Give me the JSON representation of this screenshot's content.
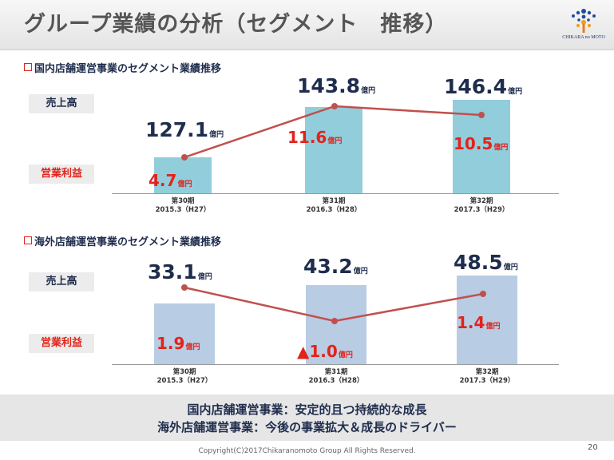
{
  "header": {
    "title": "グループ業績の分析（セグメント　推移）",
    "logo_text": "CHIKARA no MOTO"
  },
  "labels": {
    "sales": "売上高",
    "profit": "営業利益"
  },
  "unit": "億円",
  "periods": [
    {
      "term": "第30期",
      "year": "2015.3（H27）"
    },
    {
      "term": "第31期",
      "year": "2016.3（H28）"
    },
    {
      "term": "第32期",
      "year": "2017.3（H29）"
    }
  ],
  "domestic": {
    "title": "国内店舗運営事業のセグメント業績推移",
    "sales": [
      "127.1",
      "143.8",
      "146.4"
    ],
    "profit": [
      "4.7",
      "11.6",
      "10.5"
    ]
  },
  "overseas": {
    "title": "海外店舗運営事業のセグメント業績推移",
    "sales": [
      "33.1",
      "43.2",
      "48.5"
    ],
    "profit": [
      "1.9",
      "▲1.0",
      "1.4"
    ]
  },
  "chart_data": [
    {
      "type": "bar",
      "title": "国内店舗運営事業のセグメント業績推移",
      "categories": [
        "第30期 2015.3（H27）",
        "第31期 2016.3（H28）",
        "第32期 2017.3（H29）"
      ],
      "series": [
        {
          "name": "売上高",
          "values": [
            127.1,
            143.8,
            146.4
          ],
          "color": "#92cddc"
        },
        {
          "name": "営業利益",
          "values": [
            4.7,
            11.6,
            10.5
          ],
          "color": "#c0504d"
        }
      ]
    },
    {
      "type": "bar",
      "title": "海外店舗運営事業のセグメント業績推移",
      "categories": [
        "第30期 2015.3（H27）",
        "第31期 2016.3（H28）",
        "第32期 2017.3（H29）"
      ],
      "series": [
        {
          "name": "売上高",
          "values": [
            33.1,
            43.2,
            48.5
          ],
          "color": "#b8cce4"
        },
        {
          "name": "営業利益",
          "values": [
            1.9,
            -1.0,
            1.4
          ],
          "color": "#c0504d"
        }
      ]
    }
  ],
  "footer": {
    "line1": "国内店舗運営事業：安定的且つ持続的な成長",
    "line2": "海外店舗運営事業：今後の事業拡大＆成長のドライバー",
    "copyright": "Copyright(C)2017Chikaranomoto Group All Rights Reserved.",
    "page": "20"
  }
}
